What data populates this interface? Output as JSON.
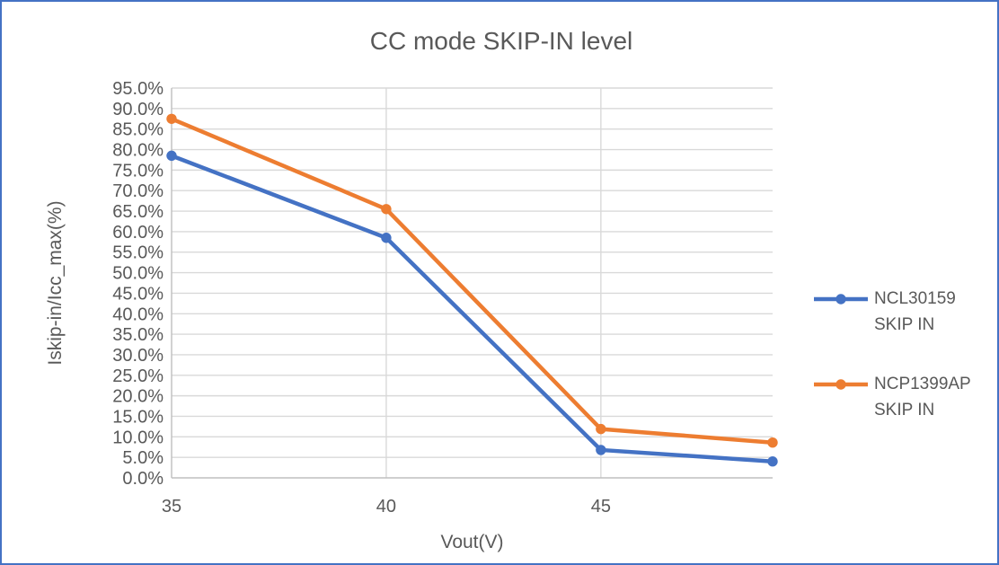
{
  "chart": {
    "title": "CC mode SKIP-IN level",
    "x_axis_title": "Vout(V)",
    "y_axis_title": "Iskip-in/Icc_max(%)"
  },
  "chart_data": {
    "type": "line",
    "title": "CC mode SKIP-IN level",
    "xlabel": "Vout(V)",
    "ylabel": "Iskip-in/Icc_max(%)",
    "x": [
      35,
      40,
      45,
      49
    ],
    "series": [
      {
        "name": "NCL30159 SKIP IN",
        "color": "#4472C4",
        "values": [
          78.5,
          58.5,
          6.8,
          4.0
        ]
      },
      {
        "name": "NCP1399AP SKIP IN",
        "color": "#ED7D31",
        "values": [
          87.5,
          65.5,
          11.9,
          8.6
        ]
      }
    ],
    "xlim": [
      35,
      49
    ],
    "ylim": [
      0,
      95
    ],
    "x_ticks": [
      35,
      40,
      45
    ],
    "y_tick_step": 5,
    "y_tick_decimals": 1,
    "y_tick_suffix": "%",
    "grid_x": [
      40,
      45
    ],
    "grid": true,
    "marker": "circle",
    "legend_position": "right"
  },
  "legend": {
    "items": [
      {
        "line1": "NCL30159",
        "line2": "SKIP IN",
        "color": "#4472C4"
      },
      {
        "line1": "NCP1399AP",
        "line2": "SKIP IN",
        "color": "#ED7D31"
      }
    ]
  },
  "colors": {
    "chart_border": "#4472C4",
    "text": "#595959",
    "gridline": "#D9D9D9",
    "axis_line": "#BFBFBF",
    "series_blue": "#4472C4",
    "series_orange": "#ED7D31",
    "background": "#FFFFFF"
  }
}
